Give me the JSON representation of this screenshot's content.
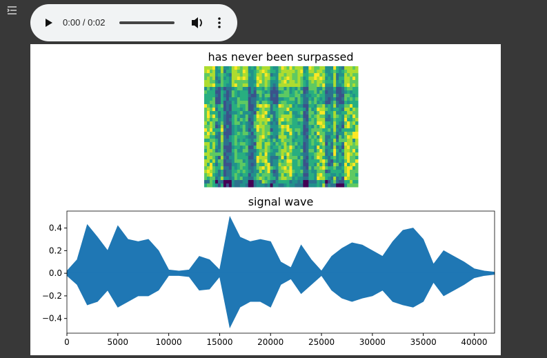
{
  "audio_player": {
    "time": "0:00 / 0:02"
  },
  "chart_data": [
    {
      "type": "heatmap",
      "title": "has never been surpassed"
    },
    {
      "type": "waveform",
      "title": "signal wave",
      "color": "#1f77b4",
      "x": [
        0,
        1000,
        2000,
        3000,
        4000,
        5000,
        6000,
        7000,
        8000,
        9000,
        10000,
        11000,
        12000,
        13000,
        14000,
        15000,
        16000,
        17000,
        18000,
        19000,
        20000,
        21000,
        22000,
        23000,
        24000,
        25000,
        26000,
        27000,
        28000,
        29000,
        30000,
        31000,
        32000,
        33000,
        34000,
        35000,
        36000,
        37000,
        38000,
        39000,
        40000,
        41000,
        42000
      ],
      "high": [
        0.02,
        0.12,
        0.43,
        0.32,
        0.2,
        0.42,
        0.3,
        0.28,
        0.3,
        0.2,
        0.03,
        0.02,
        0.03,
        0.15,
        0.12,
        0.03,
        0.5,
        0.32,
        0.28,
        0.3,
        0.28,
        0.1,
        0.05,
        0.25,
        0.12,
        0.02,
        0.15,
        0.22,
        0.27,
        0.25,
        0.2,
        0.15,
        0.28,
        0.38,
        0.4,
        0.3,
        0.08,
        0.2,
        0.15,
        0.1,
        0.04,
        0.02,
        0.01
      ],
      "low": [
        -0.02,
        -0.1,
        -0.28,
        -0.25,
        -0.15,
        -0.3,
        -0.25,
        -0.2,
        -0.2,
        -0.15,
        -0.02,
        -0.02,
        -0.03,
        -0.15,
        -0.14,
        -0.03,
        -0.48,
        -0.3,
        -0.25,
        -0.25,
        -0.3,
        -0.1,
        -0.05,
        -0.18,
        -0.1,
        -0.02,
        -0.15,
        -0.22,
        -0.25,
        -0.22,
        -0.2,
        -0.15,
        -0.25,
        -0.28,
        -0.3,
        -0.25,
        -0.08,
        -0.2,
        -0.15,
        -0.1,
        -0.04,
        -0.02,
        -0.01
      ],
      "xlim": [
        0,
        42000
      ],
      "ylim": [
        -0.53,
        0.55
      ],
      "xticks": [
        0,
        5000,
        10000,
        15000,
        20000,
        25000,
        30000,
        35000,
        40000
      ],
      "yticks": [
        {
          "value": -0.4,
          "label": "−0.4"
        },
        {
          "value": -0.2,
          "label": "−0.2"
        },
        {
          "value": 0,
          "label": "0.0"
        },
        0.2,
        0.4
      ]
    }
  ]
}
